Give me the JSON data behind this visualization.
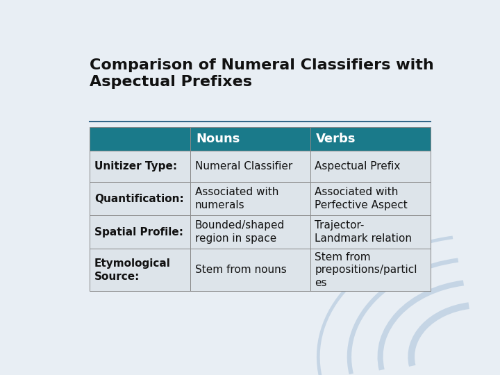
{
  "title": "Comparison of Numeral Classifiers with\nAspectual Prefixes",
  "slide_bg": "#e8eef4",
  "header_color": "#1a7a8a",
  "header_text_color": "#ffffff",
  "row_bg_light": "#dde4ea",
  "col_labels": [
    "",
    "Nouns",
    "Verbs"
  ],
  "rows": [
    {
      "label": "Unitizer Type:",
      "col1": "Numeral Classifier",
      "col2": "Aspectual Prefix"
    },
    {
      "label": "Quantification:",
      "col1": "Associated with\nnumerals",
      "col2": "Associated with\nPerfective Aspect"
    },
    {
      "label": "Spatial Profile:",
      "col1": "Bounded/shaped\nregion in space",
      "col2": "Trajector-\nLandmark relation"
    },
    {
      "label": "Etymological\nSource:",
      "col1": "Stem from nouns",
      "col2": "Stem from\nprepositions/particl\nes"
    }
  ],
  "title_fontsize": 16,
  "header_fontsize": 13,
  "cell_fontsize": 11,
  "label_fontsize": 11,
  "line_color": "#336688",
  "border_color": "#888888",
  "text_color": "#111111"
}
